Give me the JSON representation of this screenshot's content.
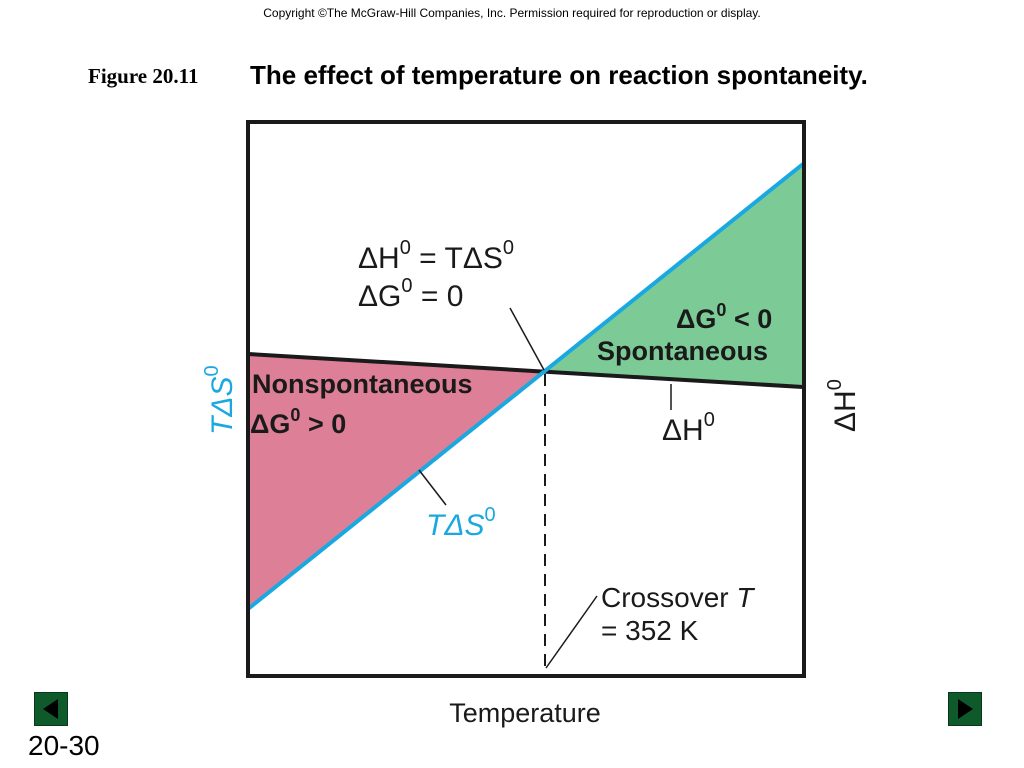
{
  "header": {
    "copyright": "Copyright ©The McGraw-Hill Companies, Inc.  Permission required for reproduction or display.",
    "figure_label": "Figure 20.11",
    "figure_title": "The effect of temperature on reaction spontaneity."
  },
  "diagram": {
    "equality": {
      "dH": "ΔH",
      "eq1": " = TΔS",
      "sup": "0"
    },
    "equality_line2": {
      "dG": "ΔG",
      "sup": "0",
      "rest": " = 0"
    },
    "spontaneous": {
      "dG": "ΔG",
      "sup": "0",
      "rest": " < 0",
      "word": "Spontaneous"
    },
    "nonspontaneous": {
      "word": "Nonspontaneous",
      "dG": "ΔG",
      "sup": "0",
      "rest": " > 0"
    },
    "tds_curve_label": {
      "text": "TΔS",
      "sup": "0"
    },
    "dh_curve_label": {
      "text": "ΔH",
      "sup": "0"
    },
    "left_axis_label": {
      "text": "TΔS",
      "sup": "0"
    },
    "right_axis_label": {
      "text": "ΔH",
      "sup": "0"
    },
    "crossover": {
      "line1": "Crossover ",
      "italic": "T",
      "line2": "=  352 K"
    },
    "x_axis_label": "Temperature"
  },
  "colors": {
    "spontaneous_fill": "#7ccb97",
    "nonspontaneous_fill": "#de7f98",
    "tds_line": "#1aa8e0",
    "dh_line": "#1a1a1a",
    "nav_button": "#0f5a2a"
  },
  "footer": {
    "slide_number": "20-30"
  }
}
